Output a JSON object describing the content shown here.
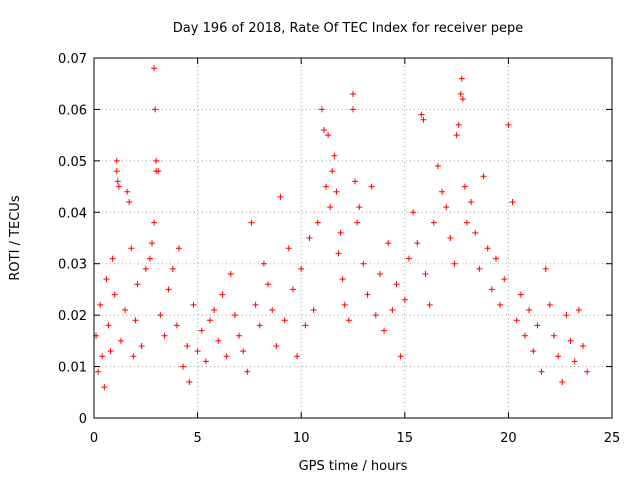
{
  "chart_data": {
    "type": "scatter",
    "title": "Day 196 of 2018, Rate Of TEC Index for receiver pepe",
    "xlabel": "GPS time / hours",
    "ylabel": "ROTI / TECUs",
    "xlim": [
      0,
      25
    ],
    "ylim": [
      0,
      0.07
    ],
    "grid": true,
    "marker": "+",
    "color": "#ff0000",
    "x_ticks": [
      0,
      5,
      10,
      15,
      20,
      25
    ],
    "x_tick_labels": [
      "0",
      "5",
      "10",
      "15",
      "20",
      "25"
    ],
    "y_ticks": [
      0,
      0.01,
      0.02,
      0.03,
      0.04,
      0.05,
      0.06,
      0.07
    ],
    "y_tick_labels": [
      "0",
      "0.01",
      "0.02",
      "0.03",
      "0.04",
      "0.05",
      "0.06",
      "0.07"
    ],
    "series": [
      {
        "name": "ROTI",
        "points": [
          [
            0.1,
            0.016
          ],
          [
            0.2,
            0.009
          ],
          [
            0.3,
            0.022
          ],
          [
            0.4,
            0.012
          ],
          [
            0.5,
            0.006
          ],
          [
            0.6,
            0.027
          ],
          [
            0.7,
            0.018
          ],
          [
            0.8,
            0.013
          ],
          [
            0.9,
            0.031
          ],
          [
            1.0,
            0.024
          ],
          [
            1.1,
            0.05
          ],
          [
            1.15,
            0.046
          ],
          [
            1.2,
            0.045
          ],
          [
            1.1,
            0.048
          ],
          [
            1.3,
            0.015
          ],
          [
            1.5,
            0.021
          ],
          [
            1.6,
            0.044
          ],
          [
            1.7,
            0.042
          ],
          [
            1.8,
            0.033
          ],
          [
            1.9,
            0.012
          ],
          [
            2.0,
            0.019
          ],
          [
            2.1,
            0.026
          ],
          [
            2.3,
            0.014
          ],
          [
            2.5,
            0.029
          ],
          [
            2.7,
            0.031
          ],
          [
            2.8,
            0.034
          ],
          [
            2.9,
            0.068
          ],
          [
            2.95,
            0.06
          ],
          [
            3.0,
            0.05
          ],
          [
            3.0,
            0.048
          ],
          [
            3.1,
            0.048
          ],
          [
            2.9,
            0.038
          ],
          [
            3.2,
            0.02
          ],
          [
            3.4,
            0.016
          ],
          [
            3.6,
            0.025
          ],
          [
            3.8,
            0.029
          ],
          [
            4.0,
            0.018
          ],
          [
            4.1,
            0.033
          ],
          [
            4.3,
            0.01
          ],
          [
            4.5,
            0.014
          ],
          [
            4.6,
            0.007
          ],
          [
            4.8,
            0.022
          ],
          [
            5.0,
            0.013
          ],
          [
            5.2,
            0.017
          ],
          [
            5.4,
            0.011
          ],
          [
            5.6,
            0.019
          ],
          [
            5.8,
            0.021
          ],
          [
            6.0,
            0.015
          ],
          [
            6.2,
            0.024
          ],
          [
            6.4,
            0.012
          ],
          [
            6.6,
            0.028
          ],
          [
            6.8,
            0.02
          ],
          [
            7.0,
            0.016
          ],
          [
            7.2,
            0.013
          ],
          [
            7.4,
            0.009
          ],
          [
            7.6,
            0.038
          ],
          [
            7.8,
            0.022
          ],
          [
            8.0,
            0.018
          ],
          [
            8.2,
            0.03
          ],
          [
            8.4,
            0.026
          ],
          [
            8.6,
            0.021
          ],
          [
            8.8,
            0.014
          ],
          [
            9.0,
            0.043
          ],
          [
            9.2,
            0.019
          ],
          [
            9.4,
            0.033
          ],
          [
            9.6,
            0.025
          ],
          [
            9.8,
            0.012
          ],
          [
            10.0,
            0.029
          ],
          [
            10.2,
            0.018
          ],
          [
            10.4,
            0.035
          ],
          [
            10.6,
            0.021
          ],
          [
            10.8,
            0.038
          ],
          [
            11.0,
            0.06
          ],
          [
            11.1,
            0.056
          ],
          [
            11.2,
            0.045
          ],
          [
            11.3,
            0.055
          ],
          [
            11.4,
            0.041
          ],
          [
            11.5,
            0.048
          ],
          [
            11.6,
            0.051
          ],
          [
            11.7,
            0.044
          ],
          [
            11.8,
            0.032
          ],
          [
            11.9,
            0.036
          ],
          [
            12.0,
            0.027
          ],
          [
            12.1,
            0.022
          ],
          [
            12.3,
            0.019
          ],
          [
            12.5,
            0.063
          ],
          [
            12.5,
            0.06
          ],
          [
            12.6,
            0.046
          ],
          [
            12.7,
            0.038
          ],
          [
            12.8,
            0.041
          ],
          [
            13.0,
            0.03
          ],
          [
            13.2,
            0.024
          ],
          [
            13.4,
            0.045
          ],
          [
            13.6,
            0.02
          ],
          [
            13.8,
            0.028
          ],
          [
            14.0,
            0.017
          ],
          [
            14.2,
            0.034
          ],
          [
            14.4,
            0.021
          ],
          [
            14.6,
            0.026
          ],
          [
            14.8,
            0.012
          ],
          [
            15.0,
            0.023
          ],
          [
            15.2,
            0.031
          ],
          [
            15.4,
            0.04
          ],
          [
            15.6,
            0.034
          ],
          [
            15.8,
            0.059
          ],
          [
            15.9,
            0.058
          ],
          [
            16.0,
            0.028
          ],
          [
            16.2,
            0.022
          ],
          [
            16.4,
            0.038
          ],
          [
            16.6,
            0.049
          ],
          [
            16.8,
            0.044
          ],
          [
            17.0,
            0.041
          ],
          [
            17.2,
            0.035
          ],
          [
            17.4,
            0.03
          ],
          [
            17.5,
            0.055
          ],
          [
            17.6,
            0.057
          ],
          [
            17.7,
            0.063
          ],
          [
            17.75,
            0.066
          ],
          [
            17.8,
            0.062
          ],
          [
            17.9,
            0.045
          ],
          [
            18.0,
            0.038
          ],
          [
            18.2,
            0.042
          ],
          [
            18.4,
            0.036
          ],
          [
            18.6,
            0.029
          ],
          [
            18.8,
            0.047
          ],
          [
            19.0,
            0.033
          ],
          [
            19.2,
            0.025
          ],
          [
            19.4,
            0.031
          ],
          [
            19.6,
            0.022
          ],
          [
            19.8,
            0.027
          ],
          [
            20.0,
            0.057
          ],
          [
            20.2,
            0.042
          ],
          [
            20.4,
            0.019
          ],
          [
            20.6,
            0.024
          ],
          [
            20.8,
            0.016
          ],
          [
            21.0,
            0.021
          ],
          [
            21.2,
            0.013
          ],
          [
            21.4,
            0.018
          ],
          [
            21.6,
            0.009
          ],
          [
            21.8,
            0.029
          ],
          [
            22.0,
            0.022
          ],
          [
            22.2,
            0.016
          ],
          [
            22.4,
            0.012
          ],
          [
            22.6,
            0.007
          ],
          [
            22.8,
            0.02
          ],
          [
            23.0,
            0.015
          ],
          [
            23.2,
            0.011
          ],
          [
            23.4,
            0.021
          ],
          [
            23.6,
            0.014
          ],
          [
            23.8,
            0.009
          ]
        ]
      }
    ]
  }
}
